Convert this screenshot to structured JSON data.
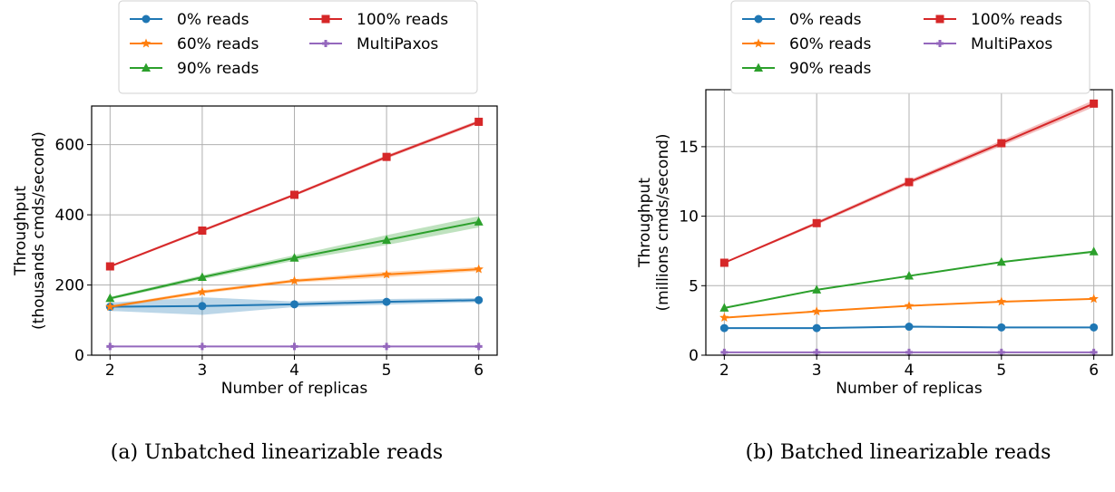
{
  "chart_data": [
    {
      "type": "line",
      "caption": "(a) Unbatched linearizable reads",
      "xlabel": "Number of replicas",
      "ylabel_line1": "Throughput",
      "ylabel_line2": "(thousands cmds/second)",
      "x": [
        2,
        3,
        4,
        5,
        6
      ],
      "xticks": [
        "2",
        "3",
        "4",
        "5",
        "6"
      ],
      "xlim": [
        1.8,
        6.2
      ],
      "ylim": [
        0,
        710
      ],
      "yticks": [
        0,
        200,
        400,
        600
      ],
      "ytick_labels": [
        "0",
        "200",
        "400",
        "600"
      ],
      "grid": true,
      "legend_position": "top",
      "series": [
        {
          "name": "0% reads",
          "color": "#1f77b4",
          "marker": "circle",
          "values": [
            138,
            140,
            145,
            152,
            157
          ],
          "band": [
            12,
            25,
            8,
            8,
            6
          ]
        },
        {
          "name": "60% reads",
          "color": "#ff7f0e",
          "marker": "star",
          "values": [
            138,
            180,
            212,
            230,
            245
          ],
          "band": [
            4,
            5,
            5,
            8,
            6
          ]
        },
        {
          "name": "90% reads",
          "color": "#2ca02c",
          "marker": "triangle",
          "values": [
            162,
            222,
            277,
            328,
            380
          ],
          "band": [
            4,
            6,
            8,
            14,
            16
          ]
        },
        {
          "name": "100% reads",
          "color": "#d62728",
          "marker": "square",
          "values": [
            253,
            355,
            457,
            565,
            665
          ],
          "band": [
            3,
            4,
            4,
            5,
            5
          ]
        },
        {
          "name": "MultiPaxos",
          "color": "#9467bd",
          "marker": "plus",
          "values": [
            25,
            25,
            25,
            25,
            25
          ],
          "band": [
            1,
            1,
            1,
            1,
            1
          ]
        }
      ]
    },
    {
      "type": "line",
      "caption": "(b) Batched linearizable reads",
      "xlabel": "Number of replicas",
      "ylabel_line1": "Throughput",
      "ylabel_line2": "(millions cmds/second)",
      "x": [
        2,
        3,
        4,
        5,
        6
      ],
      "xticks": [
        "2",
        "3",
        "4",
        "5",
        "6"
      ],
      "xlim": [
        1.8,
        6.2
      ],
      "ylim": [
        0,
        19.1
      ],
      "yticks": [
        0,
        5,
        10,
        15
      ],
      "ytick_labels": [
        "0",
        "5",
        "10",
        "15"
      ],
      "grid": true,
      "legend_position": "top",
      "series": [
        {
          "name": "0% reads",
          "color": "#1f77b4",
          "marker": "circle",
          "values": [
            1.95,
            1.95,
            2.05,
            2.0,
            2.0
          ],
          "band": [
            0.05,
            0.05,
            0.05,
            0.05,
            0.05
          ]
        },
        {
          "name": "60% reads",
          "color": "#ff7f0e",
          "marker": "star",
          "values": [
            2.7,
            3.15,
            3.55,
            3.85,
            4.05
          ],
          "band": [
            0.05,
            0.05,
            0.05,
            0.05,
            0.05
          ]
        },
        {
          "name": "90% reads",
          "color": "#2ca02c",
          "marker": "triangle",
          "values": [
            3.4,
            4.7,
            5.7,
            6.7,
            7.45
          ],
          "band": [
            0.05,
            0.05,
            0.05,
            0.05,
            0.08
          ]
        },
        {
          "name": "100% reads",
          "color": "#d62728",
          "marker": "square",
          "values": [
            6.65,
            9.5,
            12.45,
            15.25,
            18.1
          ],
          "band": [
            0.06,
            0.12,
            0.15,
            0.2,
            0.25
          ]
        },
        {
          "name": "MultiPaxos",
          "color": "#9467bd",
          "marker": "plus",
          "values": [
            0.2,
            0.2,
            0.2,
            0.2,
            0.2
          ],
          "band": [
            0.02,
            0.02,
            0.02,
            0.02,
            0.02
          ]
        }
      ]
    }
  ]
}
